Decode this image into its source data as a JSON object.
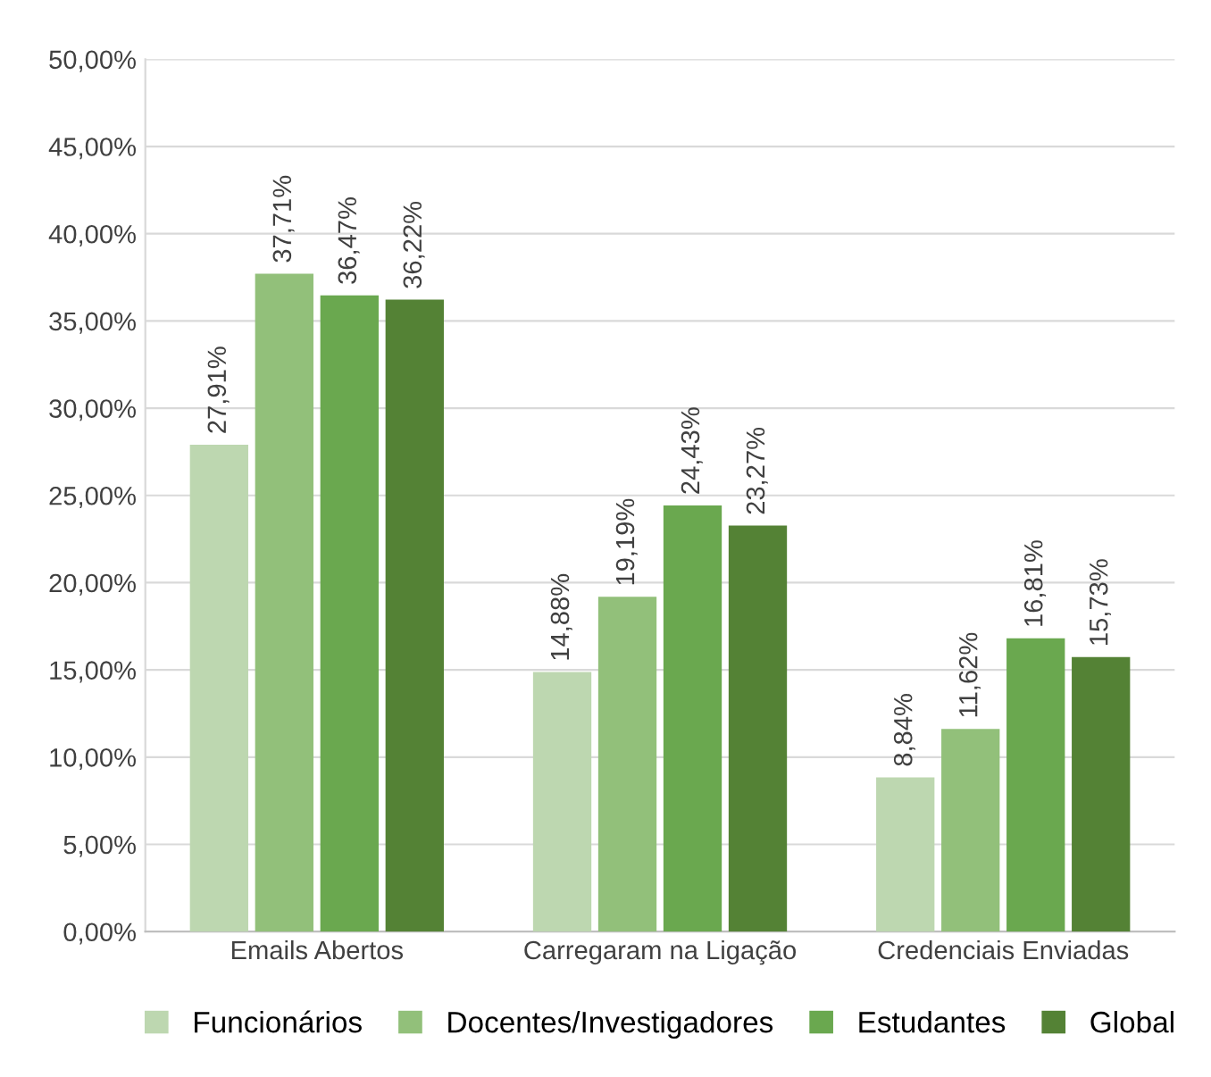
{
  "chart_data": {
    "type": "bar",
    "categories": [
      "Emails Abertos",
      "Carregaram na Ligação",
      "Credenciais Enviadas"
    ],
    "series": [
      {
        "name": "Funcionários",
        "color": "#bdd7b0",
        "values": [
          27.91,
          14.88,
          8.84
        ],
        "value_labels": [
          "27,91%",
          "14,88%",
          "8,84%"
        ]
      },
      {
        "name": "Docentes/Investigadores",
        "color": "#92c07a",
        "values": [
          37.71,
          19.19,
          11.62
        ],
        "value_labels": [
          "37,71%",
          "19,19%",
          "11,62%"
        ]
      },
      {
        "name": "Estudantes",
        "color": "#6aa84f",
        "values": [
          36.47,
          24.43,
          16.81
        ],
        "value_labels": [
          "36,47%",
          "24,43%",
          "16,81%"
        ]
      },
      {
        "name": "Global",
        "color": "#548235",
        "values": [
          36.22,
          23.27,
          15.73
        ],
        "value_labels": [
          "36,22%",
          "23,27%",
          "15,73%"
        ]
      }
    ],
    "ylim": [
      0,
      50
    ],
    "yticks": [
      {
        "value": 0,
        "label": "0,00%"
      },
      {
        "value": 5,
        "label": "5,00%"
      },
      {
        "value": 10,
        "label": "10,00%"
      },
      {
        "value": 15,
        "label": "15,00%"
      },
      {
        "value": 20,
        "label": "20,00%"
      },
      {
        "value": 25,
        "label": "25,00%"
      },
      {
        "value": 30,
        "label": "30,00%"
      },
      {
        "value": 35,
        "label": "35,00%"
      },
      {
        "value": 40,
        "label": "40,00%"
      },
      {
        "value": 45,
        "label": "45,00%"
      },
      {
        "value": 50,
        "label": "50,00%"
      }
    ],
    "grid": "y",
    "legend": "bottom"
  }
}
